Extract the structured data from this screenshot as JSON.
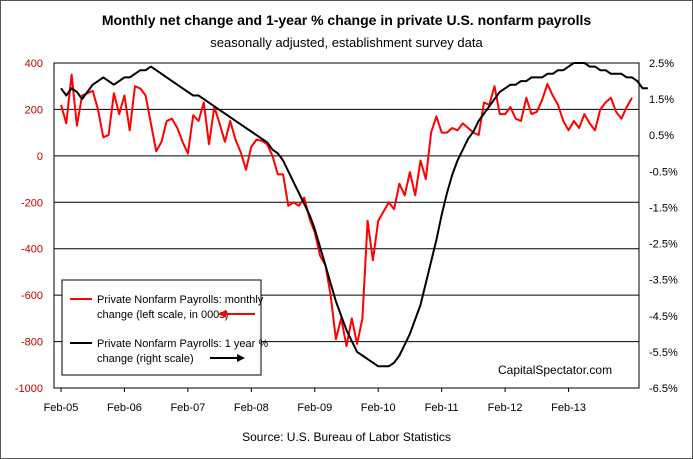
{
  "chart_data": {
    "type": "line",
    "title": "Monthly net change and 1-year %  change in private U.S. nonfarm payrolls",
    "subtitle": "seasonally adjusted, establishment survey data",
    "source": "Source: U.S. Bureau of Labor Statistics",
    "watermark": "CapitalSpectator.com",
    "x_tick_labels": [
      "Feb-05",
      "Feb-06",
      "Feb-07",
      "Feb-08",
      "Feb-09",
      "Feb-10",
      "Feb-11",
      "Feb-12",
      "Feb-13"
    ],
    "x_start": "Feb-05",
    "x_end": "Feb-13",
    "left_axis": {
      "ticks": [
        "400",
        "200",
        "0",
        "-200",
        "-400",
        "-600",
        "-800",
        "-1000"
      ],
      "ylim": [
        -1000,
        400
      ]
    },
    "right_axis": {
      "ticks": [
        "2.5%",
        "1.5%",
        "0.5%",
        "-0.5%",
        "-1.5%",
        "-2.5%",
        "-3.5%",
        "-4.5%",
        "-5.5%",
        "-6.5%"
      ],
      "ylim": [
        -6.5,
        2.5
      ]
    },
    "grid": "horizontal",
    "legend_placement": "bottom-left",
    "series": [
      {
        "name": "Private Nonfarm Payrolls: monthly change (left scale, in 000s)",
        "legend_lines": [
          "Private Nonfarm Payrolls: monthly",
          "change (left scale, in 000s)"
        ],
        "axis": "left",
        "color": "#ff0000",
        "values": [
          220,
          140,
          350,
          130,
          260,
          270,
          280,
          200,
          80,
          90,
          270,
          180,
          260,
          110,
          300,
          290,
          260,
          140,
          20,
          60,
          150,
          160,
          120,
          60,
          10,
          175,
          150,
          230,
          50,
          210,
          140,
          60,
          150,
          70,
          15,
          -60,
          40,
          70,
          65,
          50,
          0,
          -80,
          -80,
          -215,
          -200,
          -215,
          -180,
          -270,
          -330,
          -430,
          -470,
          -600,
          -790,
          -700,
          -820,
          -700,
          -810,
          -700,
          -280,
          -450,
          -280,
          -240,
          -200,
          -230,
          -120,
          -170,
          -70,
          -170,
          -20,
          -100,
          100,
          170,
          100,
          100,
          120,
          110,
          140,
          120,
          100,
          90,
          230,
          220,
          300,
          180,
          180,
          210,
          160,
          150,
          250,
          180,
          190,
          240,
          310,
          260,
          220,
          150,
          110,
          150,
          120,
          180,
          140,
          110,
          200,
          230,
          250,
          190,
          160,
          210,
          250
        ]
      },
      {
        "name": "Private Nonfarm Payrolls:  1 year % change (right scale)",
        "legend_lines": [
          "Private Nonfarm Payrolls:  1 year %",
          "change (right scale)"
        ],
        "axis": "right",
        "color": "#000000",
        "values": [
          1.8,
          1.6,
          1.8,
          1.7,
          1.5,
          1.7,
          1.9,
          2.0,
          2.1,
          2.0,
          1.9,
          2.0,
          2.1,
          2.1,
          2.2,
          2.3,
          2.3,
          2.4,
          2.3,
          2.2,
          2.1,
          2.0,
          1.9,
          1.8,
          1.7,
          1.6,
          1.6,
          1.5,
          1.4,
          1.3,
          1.2,
          1.1,
          1.0,
          0.9,
          0.8,
          0.7,
          0.6,
          0.5,
          0.4,
          0.3,
          0.1,
          0.0,
          -0.2,
          -0.5,
          -0.8,
          -1.1,
          -1.4,
          -1.7,
          -2.1,
          -2.6,
          -3.1,
          -3.6,
          -4.1,
          -4.5,
          -4.9,
          -5.2,
          -5.5,
          -5.6,
          -5.7,
          -5.8,
          -5.9,
          -5.9,
          -5.9,
          -5.8,
          -5.6,
          -5.3,
          -5.0,
          -4.6,
          -4.2,
          -3.6,
          -3.0,
          -2.4,
          -1.7,
          -1.1,
          -0.6,
          -0.2,
          0.1,
          0.4,
          0.6,
          0.9,
          1.1,
          1.3,
          1.5,
          1.7,
          1.8,
          1.9,
          1.9,
          2.0,
          2.0,
          2.1,
          2.1,
          2.1,
          2.2,
          2.2,
          2.3,
          2.3,
          2.4,
          2.5,
          2.5,
          2.5,
          2.4,
          2.4,
          2.3,
          2.3,
          2.2,
          2.2,
          2.2,
          2.1,
          2.1,
          2.0,
          1.8,
          1.8
        ]
      }
    ]
  }
}
